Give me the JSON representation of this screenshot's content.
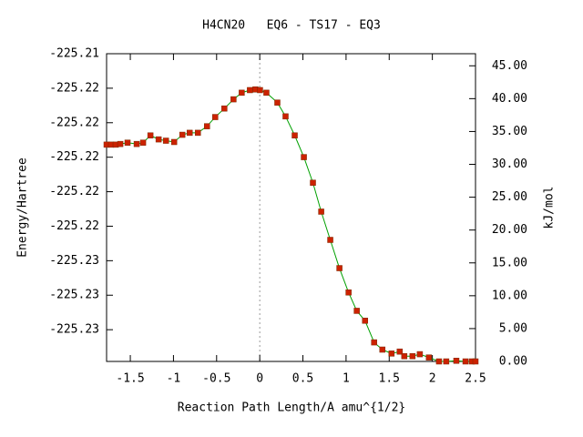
{
  "chart_data": {
    "type": "line",
    "title": "H4CN20   EQ6 - TS17 - EQ3",
    "x_label": "Reaction Path Length/A amu^{1/2}",
    "y_label": "Energy/Hartree",
    "y2_label": "kJ/mol",
    "xlim": [
      -1.775,
      2.5
    ],
    "xticks": [
      -1.5,
      -1,
      -0.5,
      0,
      0.5,
      1,
      1.5,
      2,
      2.5
    ],
    "ylim": [
      -225.23184,
      -225.214
    ],
    "yticks": [
      {
        "value": -225.214,
        "label": "-225.21"
      },
      {
        "value": -225.216,
        "label": "-225.22"
      },
      {
        "value": -225.218,
        "label": "-225.22"
      },
      {
        "value": -225.22,
        "label": "-225.22"
      },
      {
        "value": -225.222,
        "label": "-225.22"
      },
      {
        "value": -225.224,
        "label": "-225.22"
      },
      {
        "value": -225.226,
        "label": "-225.23"
      },
      {
        "value": -225.228,
        "label": "-225.23"
      },
      {
        "value": -225.23,
        "label": "-225.23"
      }
    ],
    "y2lim": [
      0,
      46.84
    ],
    "y2ticks": [
      {
        "value": 0,
        "label": "0.00"
      },
      {
        "value": 5,
        "label": "5.00"
      },
      {
        "value": 10,
        "label": "10.00"
      },
      {
        "value": 15,
        "label": "15.00"
      },
      {
        "value": 20,
        "label": "20.00"
      },
      {
        "value": 25,
        "label": "25.00"
      },
      {
        "value": 30,
        "label": "30.00"
      },
      {
        "value": 35,
        "label": "35.00"
      },
      {
        "value": 40,
        "label": "40.00"
      },
      {
        "value": 45,
        "label": "45.00"
      }
    ],
    "ts_marker_x": 0,
    "x": [
      -1.775,
      -1.722,
      -1.669,
      -1.616,
      -1.532,
      -1.426,
      -1.352,
      -1.267,
      -1.172,
      -1.087,
      -0.992,
      -0.897,
      -0.812,
      -0.717,
      -0.611,
      -0.516,
      -0.41,
      -0.304,
      -0.209,
      -0.114,
      -0.05,
      0.003,
      0.077,
      0.204,
      0.299,
      0.405,
      0.511,
      0.616,
      0.712,
      0.817,
      0.923,
      1.029,
      1.124,
      1.22,
      1.325,
      1.421,
      1.527,
      1.622,
      1.675,
      1.77,
      1.855,
      1.96,
      2.077,
      2.161,
      2.278,
      2.384,
      2.458,
      2.5
    ],
    "series": [
      {
        "color": "#cc2200",
        "line_color": "#00a000",
        "axis": "y2",
        "values": [
          33.0,
          33.0,
          33.0,
          33.1,
          33.3,
          33.1,
          33.3,
          34.4,
          33.8,
          33.6,
          33.4,
          34.5,
          34.8,
          34.8,
          35.8,
          37.2,
          38.5,
          39.9,
          40.9,
          41.3,
          41.4,
          41.3,
          40.9,
          39.4,
          37.3,
          34.4,
          31.1,
          27.2,
          22.8,
          18.5,
          14.2,
          10.5,
          7.7,
          6.2,
          2.9,
          1.8,
          1.2,
          1.5,
          0.8,
          0.8,
          1.1,
          0.6,
          0.0,
          0.0,
          0.1,
          0.0,
          0.0,
          0.0
        ]
      }
    ]
  }
}
